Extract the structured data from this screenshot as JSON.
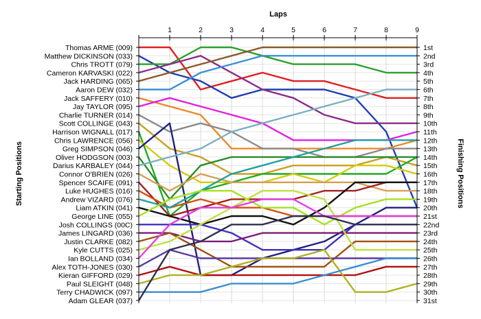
{
  "chart_data": {
    "type": "line",
    "title": "",
    "xlabel": "Laps",
    "ylabel_left": "Starting Positions",
    "ylabel_right": "Finishing Positions",
    "x": [
      0,
      1,
      2,
      3,
      4,
      5,
      6,
      7,
      8,
      9
    ],
    "x_tick_labels": [
      "1",
      "2",
      "3",
      "4",
      "5",
      "6",
      "7",
      "8",
      "9"
    ],
    "drivers": [
      "Thomas ARME (009)",
      "Matthew DICKINSON (033)",
      "Chris TROTT (079)",
      "Cameron KARVASKI (022)",
      "Jack HARDING (065)",
      "Aaron DEW (032)",
      "Jack SAFFERY (010)",
      "Jay TAYLOR (095)",
      "Charlie TURNER (014)",
      "Scott COLLINGE (043)",
      "Harrison WIGNALL (017)",
      "Chris LAWRENCE (056)",
      "Greg SIMPSON (046)",
      "Oliver HODGSON (003)",
      "Darius KARBALEY (044)",
      "Connor O'BRIEN (026)",
      "Spencer SCAIFE (091)",
      "Luke HUGHES (016)",
      "Andrew VIZARD (076)",
      "Liam ATKIN (041)",
      "George LINE (055)",
      "Josh COLLINGS (00C)",
      "James LINGARD (036)",
      "Justin CLARKE (082)",
      "Kyle CUTTS (025)",
      "Ian BOLLAND (034)",
      "Alex TOTH-JONES (030)",
      "Kieran GIFFORD (029)",
      "Paul SLEIGHT (048)",
      "Terry CHADWICK (097)",
      "Adam GLEAR (037)"
    ],
    "finishing_labels": [
      "1st",
      "2nd",
      "3rd",
      "4th",
      "5th",
      "6th",
      "7th",
      "8th",
      "9th",
      "10th",
      "11th",
      "12th",
      "13th",
      "14th",
      "15th",
      "16th",
      "17th",
      "18th",
      "19th",
      "20th",
      "21st",
      "22nd",
      "23rd",
      "24th",
      "25th",
      "26th",
      "27th",
      "28th",
      "29th",
      "30th",
      "31st"
    ],
    "series": [
      {
        "color": "#e02020",
        "positions": [
          1,
          1,
          6,
          5,
          4,
          5,
          5,
          6,
          7,
          7
        ]
      },
      {
        "color": "#1f3fae",
        "positions": [
          2,
          4,
          5,
          7,
          6,
          6,
          6,
          7,
          11,
          20
        ]
      },
      {
        "color": "#2aa02a",
        "positions": [
          3,
          3,
          1,
          1,
          2,
          3,
          3,
          3,
          4,
          4
        ]
      },
      {
        "color": "#8a2b8a",
        "positions": [
          4,
          3,
          2,
          4,
          6,
          7,
          9,
          10,
          10,
          10
        ]
      },
      {
        "color": "#8b5a2b",
        "positions": [
          5,
          4,
          3,
          2,
          1,
          1,
          1,
          1,
          1,
          1
        ]
      },
      {
        "color": "#3a8fd8",
        "positions": [
          6,
          6,
          4,
          3,
          2,
          2,
          2,
          2,
          2,
          2
        ]
      },
      {
        "color": "#e88a2a",
        "positions": [
          7,
          8,
          9,
          13,
          13,
          13,
          13,
          13,
          13,
          12
        ]
      },
      {
        "color": "#e020e0",
        "positions": [
          8,
          7,
          8,
          9,
          10,
          12,
          12,
          12,
          12,
          11
        ]
      },
      {
        "color": "#8a8a8a",
        "positions": [
          9,
          11,
          10,
          11,
          13,
          13,
          14,
          14,
          13,
          13
        ]
      },
      {
        "color": "#c8a020",
        "positions": [
          10,
          13,
          14,
          16,
          16,
          15,
          15,
          15,
          14,
          15
        ]
      },
      {
        "color": "#22aa22",
        "positions": [
          11,
          21,
          18,
          17,
          16,
          16,
          16,
          16,
          16,
          14
        ]
      },
      {
        "color": "#d4cc10",
        "positions": [
          12,
          15,
          17,
          17,
          17,
          16,
          17,
          15,
          15,
          16
        ]
      },
      {
        "color": "#202080",
        "positions": [
          13,
          10,
          28,
          28,
          26,
          25,
          24,
          22,
          20,
          20
        ]
      },
      {
        "color": "#2a8a2a",
        "positions": [
          14,
          19,
          15,
          14,
          14,
          14,
          14,
          14,
          14,
          14
        ]
      },
      {
        "color": "#7ab0c0",
        "positions": [
          15,
          14,
          13,
          11,
          10,
          9,
          8,
          7,
          6,
          6
        ]
      },
      {
        "color": "#d4a050",
        "positions": [
          16,
          18,
          16,
          17,
          17,
          17,
          17,
          17,
          18,
          18
        ]
      },
      {
        "color": "#a02020",
        "positions": [
          17,
          21,
          20,
          19,
          19,
          19,
          18,
          18,
          17,
          17
        ]
      },
      {
        "color": "#d05010",
        "positions": [
          18,
          20,
          19,
          20,
          20,
          21,
          21,
          21,
          21,
          21
        ]
      },
      {
        "color": "#20a0a0",
        "positions": [
          19,
          20,
          18,
          16,
          15,
          14,
          13,
          12,
          12,
          12
        ]
      },
      {
        "color": "#101010",
        "positions": [
          20,
          21,
          22,
          21,
          21,
          22,
          20,
          17,
          17,
          17
        ]
      },
      {
        "color": "#a6e020",
        "positions": [
          21,
          19,
          18,
          18,
          20,
          20,
          22,
          20,
          19,
          19
        ]
      },
      {
        "color": "#4030c0",
        "positions": [
          22,
          22,
          22,
          23,
          25,
          25,
          25,
          22,
          22,
          22
        ]
      },
      {
        "color": "#7a1a7a",
        "positions": [
          23,
          23,
          24,
          24,
          23,
          23,
          23,
          23,
          23,
          23
        ]
      },
      {
        "color": "#a05010",
        "positions": [
          24,
          23,
          25,
          27,
          27,
          27,
          27,
          24,
          24,
          24
        ]
      },
      {
        "color": "#c0e040",
        "positions": [
          25,
          24,
          22,
          20,
          18,
          18,
          19,
          25,
          25,
          25
        ]
      },
      {
        "color": "#e040e0",
        "positions": [
          26,
          22,
          20,
          20,
          19,
          19,
          21,
          21,
          21,
          21
        ]
      },
      {
        "color": "#5a3aa0",
        "positions": [
          27,
          25,
          26,
          26,
          26,
          26,
          26,
          26,
          26,
          26
        ]
      },
      {
        "color": "#b01010",
        "positions": [
          28,
          27,
          28,
          28,
          28,
          28,
          28,
          28,
          27,
          27
        ]
      },
      {
        "color": "#b0b020",
        "positions": [
          29,
          28,
          28,
          27,
          26,
          26,
          25,
          30,
          30,
          29
        ]
      },
      {
        "color": "#3a8ed0",
        "positions": [
          30,
          30,
          30,
          29,
          29,
          29,
          28,
          27,
          26,
          26
        ]
      },
      {
        "color": "#303050",
        "positions": [
          31,
          25,
          24,
          22,
          22,
          21,
          21,
          22,
          22,
          22
        ]
      }
    ],
    "ylim": [
      1,
      31
    ],
    "xlim": [
      0,
      9
    ],
    "grid": true,
    "legend": "none"
  }
}
